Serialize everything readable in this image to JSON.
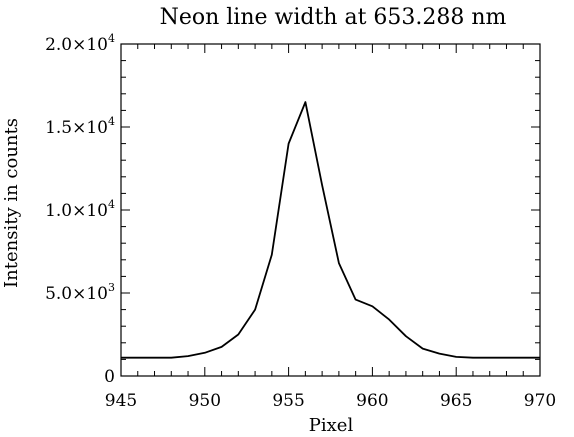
{
  "chart_data": {
    "type": "line",
    "title": "Neon line width at 653.288 nm",
    "xlabel": "Pixel",
    "ylabel": "Intensity in counts",
    "xlim": [
      945,
      970
    ],
    "ylim": [
      0,
      20000
    ],
    "x_ticks": [
      945,
      950,
      955,
      960,
      965,
      970
    ],
    "x_tick_labels": [
      "945",
      "950",
      "955",
      "960",
      "965",
      "970"
    ],
    "y_ticks": [
      {
        "value": 0,
        "mantissa": "0",
        "exponent": ""
      },
      {
        "value": 5000,
        "mantissa": "5.0×10",
        "exponent": "3"
      },
      {
        "value": 10000,
        "mantissa": "1.0×10",
        "exponent": "4"
      },
      {
        "value": 15000,
        "mantissa": "1.5×10",
        "exponent": "4"
      },
      {
        "value": 20000,
        "mantissa": "2.0×10",
        "exponent": "4"
      }
    ],
    "grid": false,
    "series": [
      {
        "x": [
          945,
          946,
          947,
          948,
          949,
          950,
          951,
          952,
          953,
          954,
          955,
          956,
          957,
          958,
          959,
          960,
          961,
          962,
          963,
          964,
          965,
          966,
          967,
          968,
          969,
          970
        ],
        "y": [
          1100,
          1100,
          1100,
          1100,
          1200,
          1400,
          1750,
          2500,
          4000,
          7300,
          14000,
          16500,
          11500,
          6800,
          4600,
          4200,
          3400,
          2400,
          1650,
          1350,
          1150,
          1100,
          1100,
          1100,
          1100,
          1100
        ]
      }
    ]
  }
}
